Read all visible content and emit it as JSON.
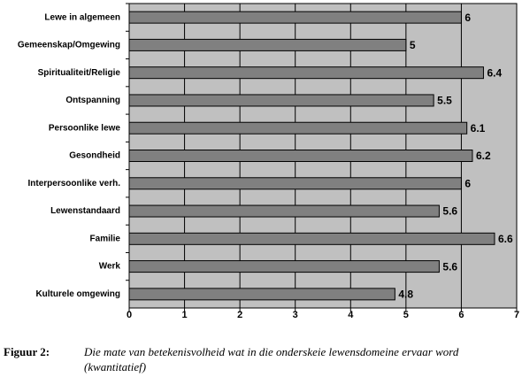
{
  "chart_data": {
    "type": "bar",
    "orientation": "horizontal",
    "categories": [
      "Lewe in algemeen",
      "Gemeenskap/Omgewing",
      "Spiritualiteit/Religie",
      "Ontspanning",
      "Persoonlike lewe",
      "Gesondheid",
      "Interpersoonlike verh.",
      "Lewenstandaard",
      "Familie",
      "Werk",
      "Kulturele omgewing"
    ],
    "values": [
      6,
      5,
      6.4,
      5.5,
      6.1,
      6.2,
      6,
      5.6,
      6.6,
      5.6,
      4.8
    ],
    "color": "#808080",
    "background": "#c0c0c0",
    "xlim": [
      0,
      7
    ],
    "xticks": [
      0,
      1,
      2,
      3,
      4,
      5,
      6,
      7
    ],
    "grid": true
  },
  "caption": {
    "label": "Figuur 2:",
    "lines": [
      "Die mate van betekenisvolheid wat in die onderskeie lewensdomeine ervaar word",
      "(kwantitatief)"
    ]
  }
}
